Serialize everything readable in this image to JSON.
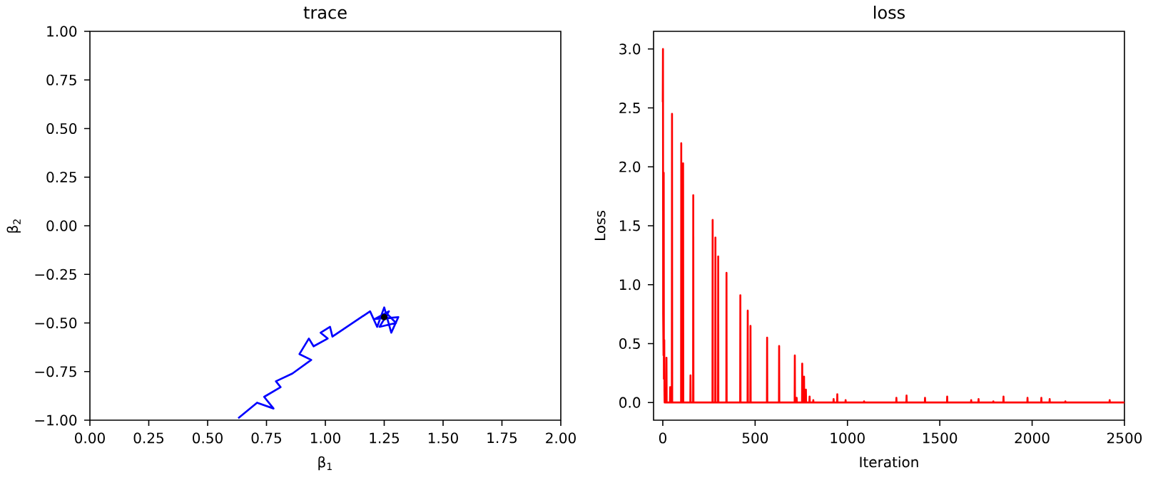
{
  "chart_data": [
    {
      "type": "line",
      "title": "trace",
      "xlabel": "β$_{1}$",
      "ylabel": "β$_{2}$",
      "xlim": [
        0,
        2
      ],
      "ylim": [
        -1,
        1
      ],
      "xticks": [
        {
          "value": 0,
          "label": "0.00"
        },
        {
          "value": 0.25,
          "label": "0.25"
        },
        {
          "value": 0.5,
          "label": "0.50"
        },
        {
          "value": 0.75,
          "label": "0.75"
        },
        {
          "value": 1,
          "label": "1.00"
        },
        {
          "value": 1.25,
          "label": "1.25"
        },
        {
          "value": 1.5,
          "label": "1.50"
        },
        {
          "value": 1.75,
          "label": "1.75"
        },
        {
          "value": 2,
          "label": "2.00"
        }
      ],
      "yticks": [
        {
          "value": -1,
          "label": "−1.00"
        },
        {
          "value": -0.75,
          "label": "−0.75"
        },
        {
          "value": -0.5,
          "label": "−0.50"
        },
        {
          "value": -0.25,
          "label": "−0.25"
        },
        {
          "value": 0,
          "label": "0.00"
        },
        {
          "value": 0.25,
          "label": "0.25"
        },
        {
          "value": 0.5,
          "label": "0.50"
        },
        {
          "value": 0.75,
          "label": "0.75"
        },
        {
          "value": 1,
          "label": "1.00"
        }
      ],
      "series": [
        {
          "color": "#0000ff",
          "x": [
            0.63,
            0.71,
            0.78,
            0.74,
            0.81,
            0.79,
            0.86,
            0.94,
            0.89,
            0.93,
            0.95,
            1.01,
            0.98,
            1.02,
            1.03,
            1.19,
            1.22,
            1.25,
            1.28,
            1.31,
            1.21,
            1.27,
            1.23,
            1.3,
            1.26,
            1.25
          ],
          "values": [
            -0.99,
            -0.91,
            -0.94,
            -0.88,
            -0.83,
            -0.8,
            -0.76,
            -0.69,
            -0.66,
            -0.58,
            -0.62,
            -0.58,
            -0.55,
            -0.52,
            -0.57,
            -0.44,
            -0.52,
            -0.42,
            -0.55,
            -0.47,
            -0.48,
            -0.44,
            -0.52,
            -0.5,
            -0.45,
            -0.47
          ]
        },
        {
          "type": "scatter",
          "color": "#000000",
          "marker": "circle",
          "x": [
            1.25
          ],
          "values": [
            -0.47
          ]
        }
      ]
    },
    {
      "type": "line",
      "title": "loss",
      "xlabel": "Iteration",
      "ylabel": "Loss",
      "xlim": [
        -50,
        2500
      ],
      "ylim": [
        -0.15,
        3.15
      ],
      "xticks": [
        0,
        500,
        1000,
        1500,
        2000,
        2500
      ],
      "yticks": [
        {
          "value": 0,
          "label": "0.0"
        },
        {
          "value": 0.5,
          "label": "0.5"
        },
        {
          "value": 1,
          "label": "1.0"
        },
        {
          "value": 1.5,
          "label": "1.5"
        },
        {
          "value": 2,
          "label": "2.0"
        },
        {
          "value": 2.5,
          "label": "2.5"
        },
        {
          "value": 3,
          "label": "3.0"
        }
      ],
      "series": [
        {
          "color": "#ff0000",
          "x": [
            0,
            1,
            2,
            4,
            5,
            6,
            8,
            9,
            10,
            19,
            20,
            21,
            39,
            40,
            41,
            49,
            50,
            51,
            99,
            100,
            101,
            109,
            110,
            111,
            149,
            150,
            151,
            164,
            165,
            166,
            269,
            270,
            271,
            284,
            285,
            286,
            299,
            300,
            301,
            344,
            345,
            346,
            419,
            420,
            421,
            459,
            460,
            461,
            474,
            475,
            476,
            564,
            565,
            566,
            629,
            630,
            631,
            714,
            715,
            716,
            724,
            725,
            726,
            754,
            755,
            756,
            764,
            765,
            766,
            774,
            775,
            776,
            794,
            795,
            796,
            814,
            815,
            816,
            924,
            925,
            926,
            944,
            945,
            946,
            989,
            990,
            991,
            1089,
            1090,
            1091,
            1264,
            1265,
            1266,
            1319,
            1320,
            1321,
            1419,
            1420,
            1421,
            1539,
            1540,
            1541,
            1669,
            1670,
            1671,
            1709,
            1710,
            1711,
            1789,
            1790,
            1791,
            1844,
            1845,
            1846,
            1974,
            1975,
            1976,
            2049,
            2050,
            2051,
            2094,
            2095,
            2096,
            2179,
            2180,
            2181,
            2419,
            2420,
            2421,
            2500
          ],
          "values": [
            2.55,
            3.0,
            0.75,
            0.4,
            1.95,
            0.2,
            0.53,
            0.1,
            0,
            0,
            0.38,
            0,
            0,
            0.13,
            0,
            0,
            2.45,
            0,
            0,
            2.2,
            0,
            0,
            2.03,
            0,
            0,
            0.23,
            0,
            0,
            1.76,
            0,
            0,
            1.55,
            0,
            0,
            1.4,
            0,
            0,
            1.24,
            0,
            0,
            1.1,
            0,
            0,
            0.91,
            0,
            0,
            0.78,
            0,
            0,
            0.65,
            0,
            0,
            0.55,
            0,
            0,
            0.48,
            0,
            0,
            0.4,
            0,
            0,
            0.04,
            0,
            0,
            0.33,
            0,
            0,
            0.22,
            0,
            0,
            0.11,
            0,
            0,
            0.05,
            0,
            0,
            0.02,
            0,
            0,
            0.03,
            0,
            0,
            0.07,
            0,
            0,
            0.02,
            0,
            0,
            0.01,
            0,
            0,
            0.04,
            0,
            0,
            0.06,
            0,
            0,
            0.04,
            0,
            0,
            0.05,
            0,
            0,
            0.02,
            0,
            0,
            0.03,
            0,
            0,
            0.01,
            0,
            0,
            0.05,
            0,
            0,
            0.04,
            0,
            0,
            0.04,
            0,
            0,
            0.03,
            0,
            0,
            0.01,
            0,
            0,
            0.02,
            0,
            0
          ]
        }
      ]
    }
  ]
}
